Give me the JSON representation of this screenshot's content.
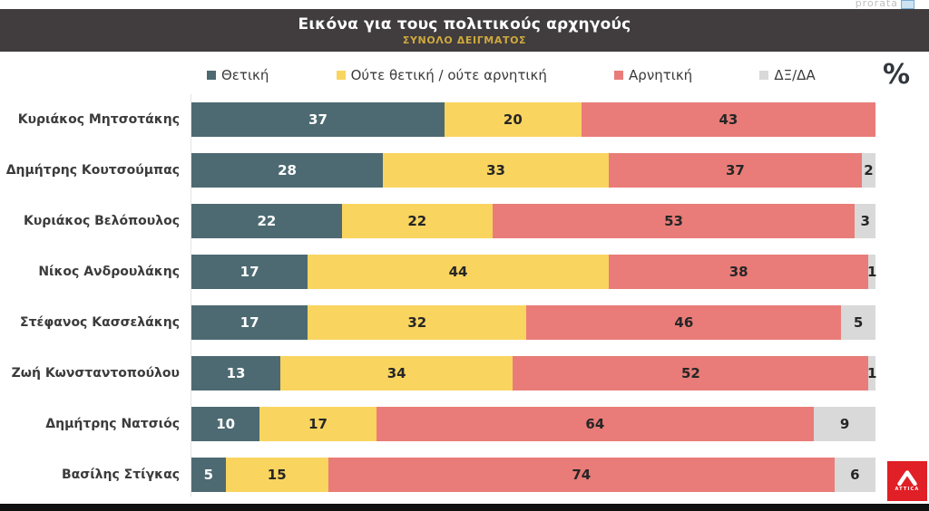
{
  "watermark": {
    "text": "prorata"
  },
  "header": {
    "title": "Εικόνα για τους πολιτικούς αρχηγούς",
    "subtitle": "ΣΥΝΟΛΟ ΔΕΙΓΜΑΤΟΣ"
  },
  "legend": [
    {
      "label": "Θετική",
      "color": "#4d6a72"
    },
    {
      "label": "Ούτε θετική / ούτε αρνητική",
      "color": "#f9d45f"
    },
    {
      "label": "Αρνητική",
      "color": "#e97c78"
    },
    {
      "label": "ΔΞ/ΔΑ",
      "color": "#d9d9d9"
    }
  ],
  "percent_symbol": "%",
  "chart_data": {
    "type": "bar",
    "orientation": "horizontal",
    "stacked": true,
    "unit": "%",
    "title": "Εικόνα για τους πολιτικούς αρχηγούς",
    "subtitle": "ΣΥΝΟΛΟ ΔΕΙΓΜΑΤΟΣ",
    "xlim": [
      0,
      100
    ],
    "grid": false,
    "legend_position": "top",
    "categories": [
      "Κυριάκος Μητσοτάκης",
      "Δημήτρης Κουτσούμπας",
      "Κυριάκος Βελόπουλος",
      "Νίκος Ανδρουλάκης",
      "Στέφανος Κασσελάκης",
      "Ζωή Κωνσταντοπούλου",
      "Δημήτρης Νατσιός",
      "Βασίλης Στίγκας"
    ],
    "series": [
      {
        "name": "Θετική",
        "color": "#4d6a72",
        "text_color": "#ffffff",
        "values": [
          37,
          28,
          22,
          17,
          17,
          13,
          10,
          5
        ]
      },
      {
        "name": "Ούτε θετική / ούτε αρνητική",
        "color": "#f9d45f",
        "text_color": "#262626",
        "values": [
          20,
          33,
          22,
          44,
          32,
          34,
          17,
          15
        ]
      },
      {
        "name": "Αρνητική",
        "color": "#e97c78",
        "text_color": "#262626",
        "values": [
          43,
          37,
          53,
          38,
          46,
          52,
          64,
          74
        ]
      },
      {
        "name": "ΔΞ/ΔΑ",
        "color": "#d9d9d9",
        "text_color": "#262626",
        "values": [
          null,
          2,
          3,
          1,
          5,
          1,
          9,
          6
        ]
      }
    ]
  },
  "logo": {
    "text": "ATTICA",
    "color": "#e01f26"
  }
}
